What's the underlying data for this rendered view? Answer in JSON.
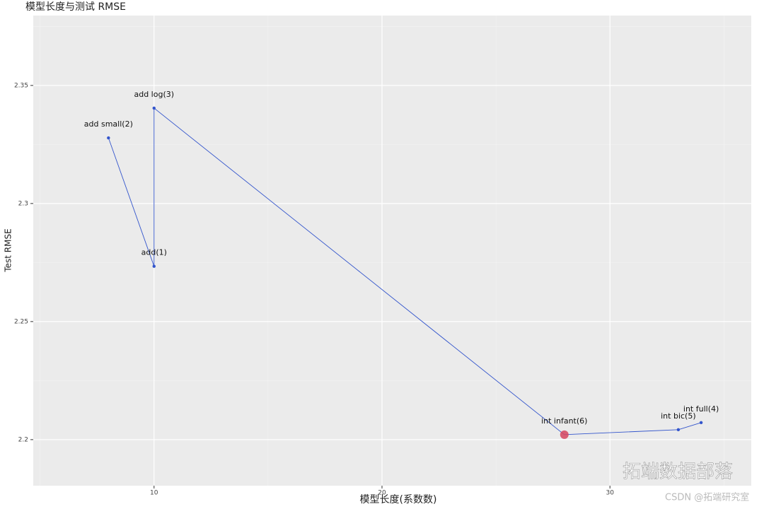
{
  "chart_data": {
    "type": "line",
    "title": "模型长度与测试 RMSE",
    "xlabel": "模型长度(系数数)",
    "ylabel": "Test RMSE",
    "labels": [
      "add small(2)",
      "add(1)",
      "add log(3)",
      "int infant(6)",
      "int bic(5)",
      "int full(4)"
    ],
    "x": [
      8,
      10,
      10,
      28,
      33,
      34
    ],
    "y": [
      2.3278,
      2.2734,
      2.3404,
      2.2021,
      2.2042,
      2.2072
    ],
    "color": "#3355cc",
    "highlight_index": 3,
    "highlight_color": "#d6455f",
    "xlim": [
      4.7,
      36.2
    ],
    "ylim": [
      2.1805,
      2.3796
    ],
    "xticks": [
      10,
      20,
      30
    ],
    "yticks": [
      2.2,
      2.25,
      2.3,
      2.35
    ],
    "x_minor_ticks": [
      5,
      15,
      25,
      35
    ],
    "y_minor_ticks": [
      2.225,
      2.275,
      2.325,
      2.375
    ],
    "grid": true,
    "watermark": [
      "拓端数据部落",
      "CSDN @拓端研究室"
    ]
  }
}
